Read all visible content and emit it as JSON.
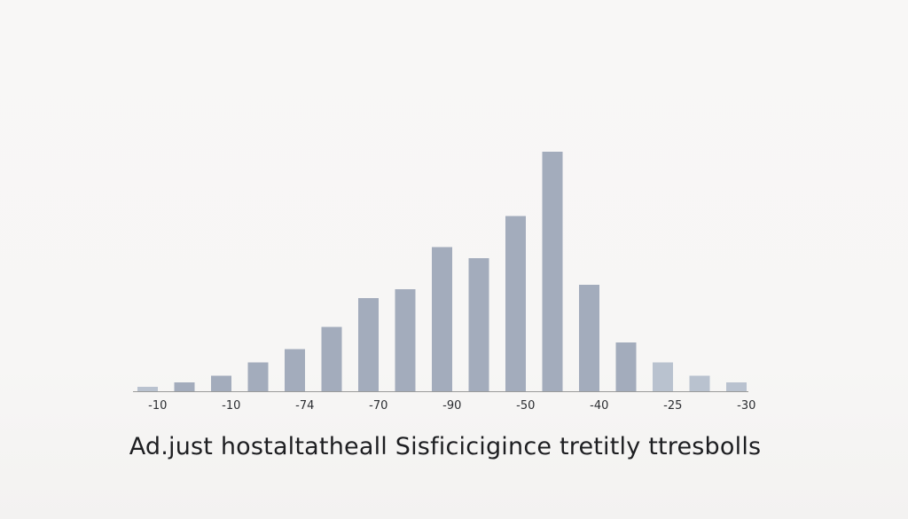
{
  "caption": "Ad.just hostaltatheall Sisficicigince tretitly ttresbolls",
  "colors": {
    "bar": "#a3acbc",
    "bar_light": "#b9c2cf",
    "axis": "#9a9a9a",
    "background": "#f8f7f6"
  },
  "chart_data": {
    "type": "bar",
    "title": "",
    "xlabel": "",
    "ylabel": "",
    "values": [
      1.0,
      2.0,
      3.5,
      6.5,
      9.5,
      14.5,
      21.0,
      23.0,
      32.5,
      30.0,
      39.5,
      54.0,
      24.0,
      11.0,
      6.5,
      3.5,
      2.0
    ],
    "ylim": [
      0,
      60
    ],
    "tick_labels": [
      "-10",
      "-10",
      "-74",
      "-70",
      "-90",
      "-50",
      "-40",
      "-25",
      "-30"
    ],
    "tick_after_bar": [
      1,
      3,
      5,
      7,
      9,
      11,
      13,
      15,
      17
    ],
    "grid": false,
    "legend": "none"
  }
}
